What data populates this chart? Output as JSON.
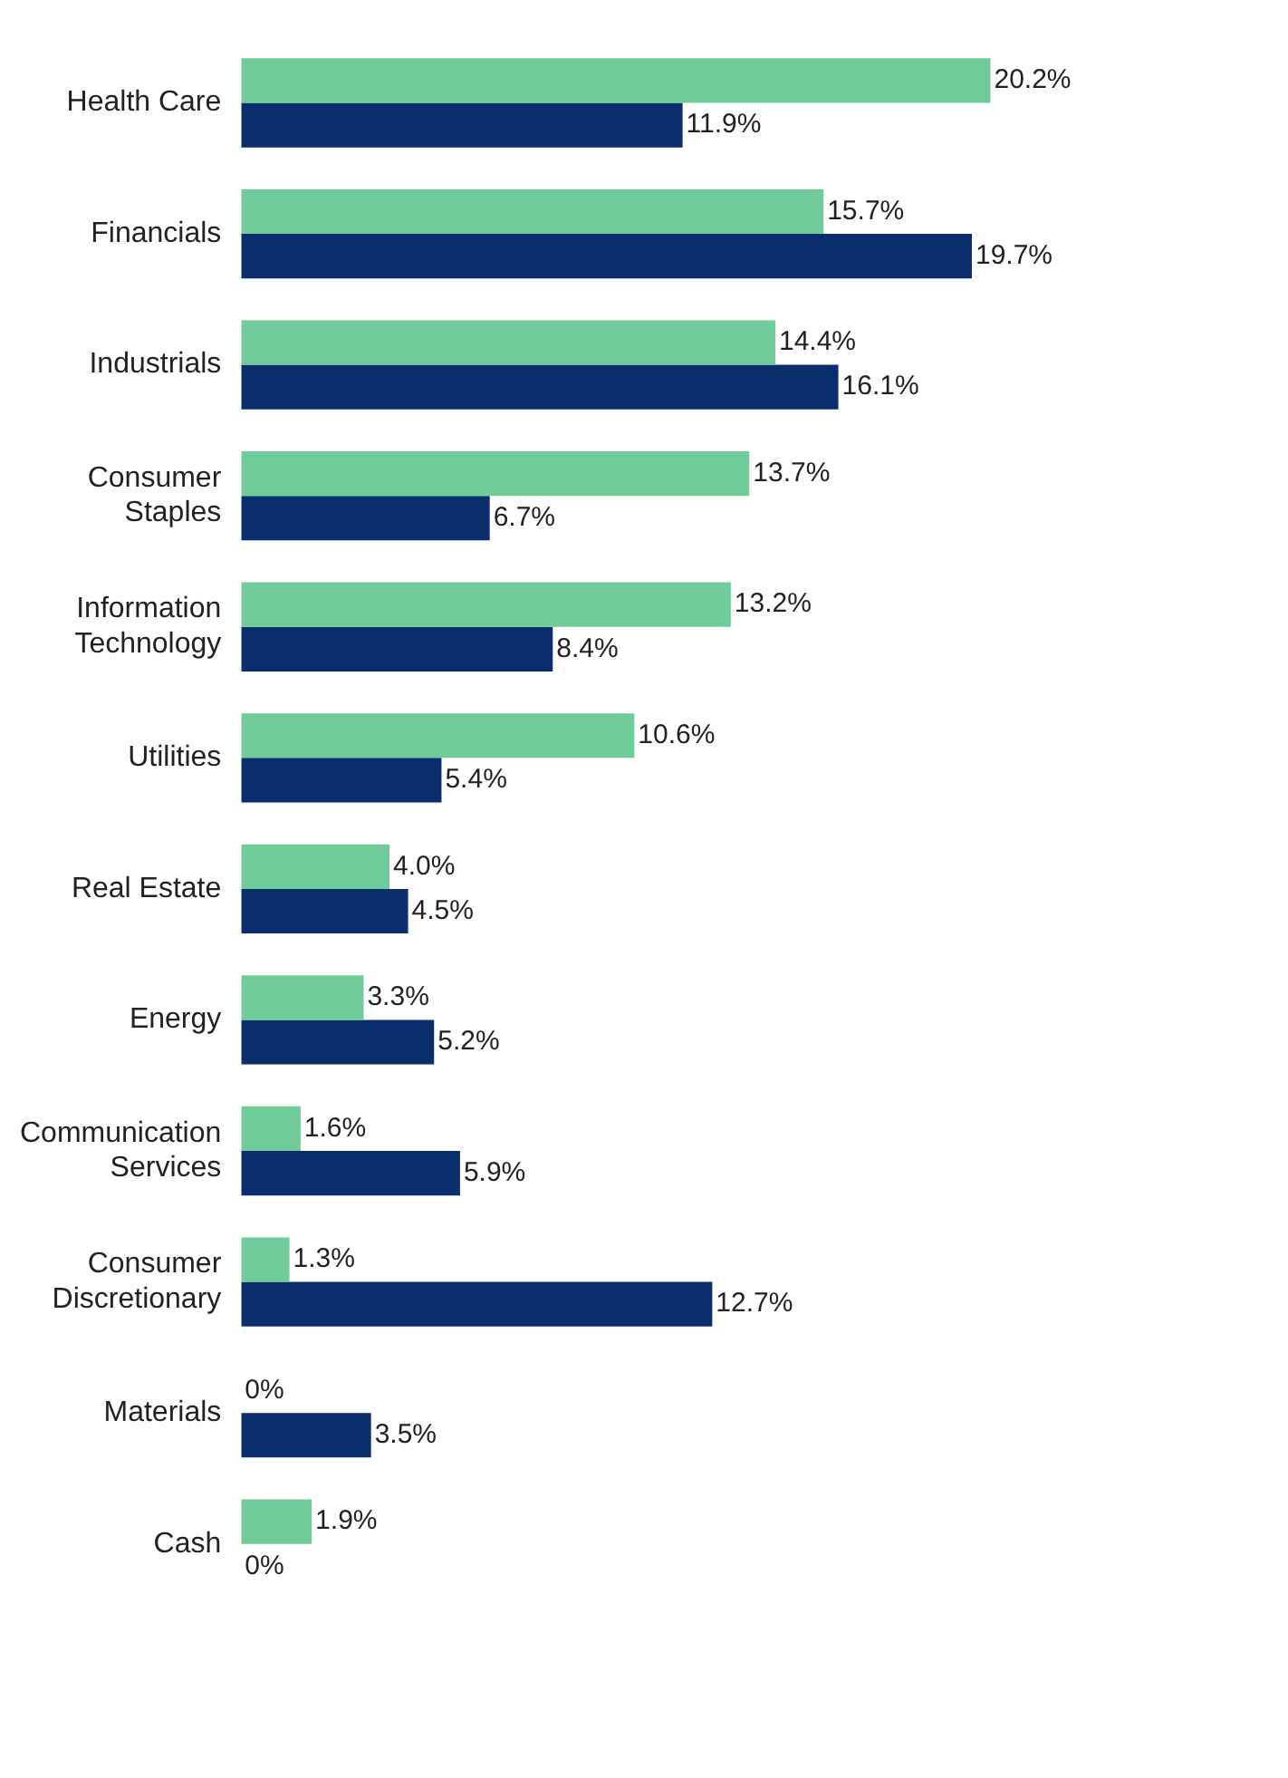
{
  "chart_data": {
    "type": "bar",
    "orientation": "horizontal",
    "categories": [
      "Health Care",
      "Financials",
      "Industrials",
      "Consumer Staples",
      "Information Technology",
      "Utilities",
      "Real Estate",
      "Energy",
      "Communication Services",
      "Consumer Discretionary",
      "Materials",
      "Cash"
    ],
    "series": [
      {
        "color": "#6fcb9a",
        "values": [
          20.2,
          15.7,
          14.4,
          13.7,
          13.2,
          10.6,
          4.0,
          3.3,
          1.6,
          1.3,
          0,
          1.9
        ],
        "value_labels": [
          "20.2%",
          "15.7%",
          "14.4%",
          "13.7%",
          "13.2%",
          "10.6%",
          "4.0%",
          "3.3%",
          "1.6%",
          "1.3%",
          "0%",
          "1.9%"
        ]
      },
      {
        "color": "#0a2d6b",
        "values": [
          11.9,
          19.7,
          16.1,
          6.7,
          8.4,
          5.4,
          4.5,
          5.2,
          5.9,
          12.7,
          3.5,
          0
        ],
        "value_labels": [
          "11.9%",
          "19.7%",
          "16.1%",
          "6.7%",
          "8.4%",
          "5.4%",
          "4.5%",
          "5.2%",
          "5.9%",
          "12.7%",
          "3.5%",
          "0%"
        ]
      }
    ],
    "tick_labels": "y",
    "legend": false
  }
}
